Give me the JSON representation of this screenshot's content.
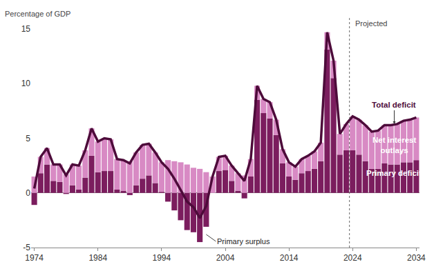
{
  "chart_data": {
    "type": "bar",
    "stacked": true,
    "y_label": "Percentage of GDP",
    "x": [
      1974,
      1975,
      1976,
      1977,
      1978,
      1979,
      1980,
      1981,
      1982,
      1983,
      1984,
      1985,
      1986,
      1987,
      1988,
      1989,
      1990,
      1991,
      1992,
      1993,
      1994,
      1995,
      1996,
      1997,
      1998,
      1999,
      2000,
      2001,
      2002,
      2003,
      2004,
      2005,
      2006,
      2007,
      2008,
      2009,
      2010,
      2011,
      2012,
      2013,
      2014,
      2015,
      2016,
      2017,
      2018,
      2019,
      2020,
      2021,
      2022,
      2023,
      2024,
      2025,
      2026,
      2027,
      2028,
      2029,
      2030,
      2031,
      2032,
      2033,
      2034
    ],
    "series": [
      {
        "name": "Primary deficit",
        "type": "bar",
        "color": "#7b1d5e",
        "values": [
          -1.1,
          1.8,
          2.6,
          1.1,
          1.0,
          -0.1,
          0.7,
          0.3,
          1.4,
          3.4,
          1.9,
          2.0,
          2.0,
          0.3,
          0.2,
          -0.2,
          0.7,
          1.3,
          1.6,
          0.9,
          0.1,
          -0.8,
          -1.6,
          -2.5,
          -3.4,
          -3.6,
          -4.5,
          -3.1,
          0.0,
          2.0,
          2.1,
          1.1,
          0.2,
          -0.5,
          1.5,
          8.5,
          7.3,
          6.8,
          5.3,
          2.7,
          1.5,
          1.2,
          1.8,
          2.0,
          2.2,
          2.9,
          13.1,
          10.5,
          3.5,
          3.9,
          3.9,
          3.5,
          2.9,
          2.2,
          2.2,
          2.7,
          2.6,
          2.6,
          2.8,
          2.8,
          3.0
        ]
      },
      {
        "name": "Net interest\noutlays",
        "type": "bar",
        "color": "#d88ac4",
        "values": [
          1.5,
          1.5,
          1.5,
          1.5,
          1.6,
          1.7,
          1.9,
          2.2,
          2.5,
          2.5,
          2.8,
          3.0,
          2.9,
          2.8,
          2.8,
          2.9,
          3.0,
          3.1,
          2.9,
          2.8,
          2.7,
          3.0,
          2.9,
          2.8,
          2.6,
          2.3,
          2.2,
          1.9,
          1.5,
          1.3,
          1.3,
          1.4,
          1.6,
          1.6,
          1.6,
          1.3,
          1.3,
          1.5,
          1.4,
          1.3,
          1.3,
          1.2,
          1.3,
          1.4,
          1.6,
          1.7,
          1.6,
          1.6,
          1.9,
          2.4,
          3.1,
          3.2,
          3.3,
          3.4,
          3.5,
          3.5,
          3.6,
          3.7,
          3.8,
          3.9,
          3.9
        ]
      },
      {
        "name": "Total deficit",
        "type": "line",
        "color": "#4d0b3a",
        "values": [
          0.4,
          3.3,
          4.1,
          2.6,
          2.6,
          1.6,
          2.6,
          2.5,
          3.9,
          5.9,
          4.7,
          5.0,
          4.9,
          3.1,
          3.0,
          2.7,
          3.7,
          4.4,
          4.5,
          3.7,
          2.8,
          2.2,
          1.3,
          0.3,
          -0.8,
          -1.3,
          -2.3,
          -1.2,
          1.5,
          3.3,
          3.4,
          2.5,
          1.8,
          1.1,
          3.1,
          9.8,
          8.6,
          8.3,
          6.7,
          4.0,
          2.8,
          2.4,
          3.1,
          3.4,
          3.8,
          4.6,
          14.7,
          12.1,
          5.4,
          6.3,
          7.0,
          6.7,
          6.2,
          5.6,
          5.7,
          6.2,
          6.2,
          6.3,
          6.6,
          6.7,
          6.9
        ]
      }
    ],
    "annotations": [
      {
        "text": "Projected",
        "x": 2023.5
      },
      {
        "text": "Primary surplus",
        "x": 2001,
        "y": -3.8
      }
    ],
    "xlim": [
      1973.5,
      2034.5
    ],
    "xticks": [
      1974,
      1984,
      1994,
      2004,
      2014,
      2024,
      2034
    ],
    "ylim": [
      -5,
      15
    ],
    "yticks": [
      -5,
      0,
      5,
      10,
      15
    ],
    "grid": false,
    "legend": "none"
  }
}
